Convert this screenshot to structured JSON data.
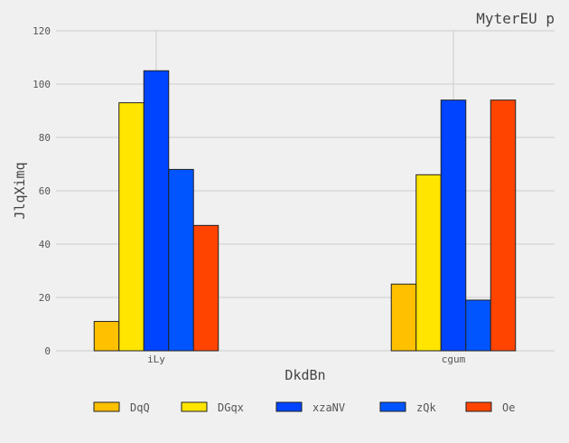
{
  "chart_data": {
    "type": "bar",
    "title": "MyterEU p",
    "xlabel": "DkdBn",
    "ylabel": "JlqXimq",
    "categories": [
      "iLy",
      "cgum"
    ],
    "ylim": [
      0,
      120
    ],
    "yticks": [
      0,
      20,
      40,
      60,
      80,
      100,
      120
    ],
    "grid": true,
    "legend_position": "bottom",
    "series": [
      {
        "name": "DqQ",
        "values": [
          11,
          25
        ],
        "color": "#ffc000"
      },
      {
        "name": "DGqx",
        "values": [
          93,
          66
        ],
        "color": "#ffe500"
      },
      {
        "name": "xzaNV",
        "values": [
          105,
          94
        ],
        "color": "#0044ff"
      },
      {
        "name": "zQk",
        "values": [
          68,
          19
        ],
        "color": "#0055ff"
      },
      {
        "name": "Oe",
        "values": [
          47,
          94
        ],
        "color": "#ff4400"
      }
    ]
  }
}
